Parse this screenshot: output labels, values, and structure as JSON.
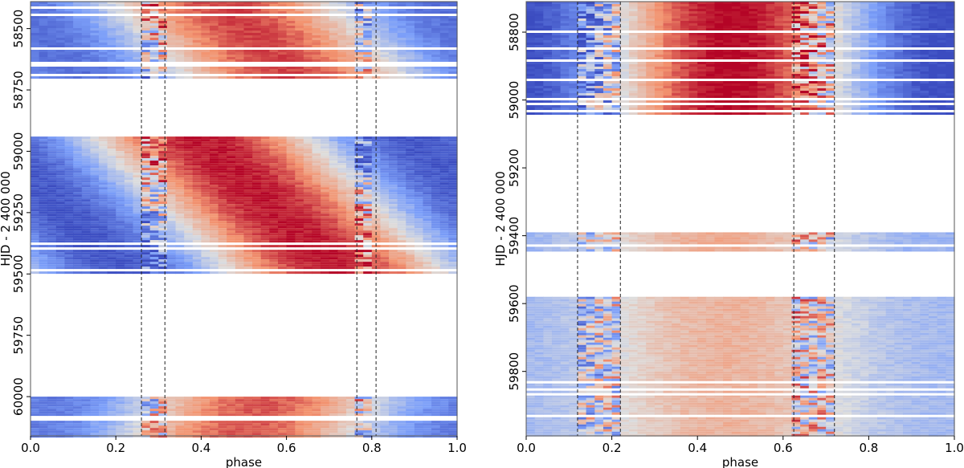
{
  "chart_data": [
    {
      "type": "heatmap",
      "xlabel": "phase",
      "ylabel": "HJD - 2 400 000",
      "xlim": [
        0.0,
        1.0
      ],
      "ylim": [
        60160,
        58390
      ],
      "y_inverted": true,
      "x_ticks": [
        0.0,
        0.2,
        0.4,
        0.6,
        0.8,
        1.0
      ],
      "x_tick_labels": [
        "0.0",
        "0.2",
        "0.4",
        "0.6",
        "0.8",
        "1.0"
      ],
      "y_ticks": [
        58500,
        58750,
        59000,
        59250,
        59500,
        59750,
        60000
      ],
      "y_tick_labels": [
        "58500",
        "58750",
        "59000",
        "59250",
        "59500",
        "59750",
        "60000"
      ],
      "colormap": "coolwarm",
      "dashed_vertical_lines": [
        0.26,
        0.315,
        0.765,
        0.81
      ],
      "observing_seasons": [
        {
          "hjd_start": 58390,
          "hjd_end": 58700,
          "peak_phase_start": 0.45,
          "peak_phase_end": 0.62,
          "peak_level": 0.78
        },
        {
          "hjd_start": 58940,
          "hjd_end": 59490,
          "peak_phase_start": 0.4,
          "peak_phase_end": 0.72,
          "peak_level": 0.95
        },
        {
          "hjd_start": 60000,
          "hjd_end": 60160,
          "peak_phase_start": 0.55,
          "peak_phase_end": 0.5,
          "peak_level": 0.72
        }
      ]
    },
    {
      "type": "heatmap",
      "xlabel": "phase",
      "ylabel": "HJD - 2 400 000",
      "xlim": [
        0.0,
        1.0
      ],
      "ylim": [
        59990,
        58710
      ],
      "y_inverted": true,
      "x_ticks": [
        0.0,
        0.2,
        0.4,
        0.6,
        0.8,
        1.0
      ],
      "x_tick_labels": [
        "0.0",
        "0.2",
        "0.4",
        "0.6",
        "0.8",
        "1.0"
      ],
      "y_ticks": [
        58800,
        59000,
        59200,
        59400,
        59600,
        59800
      ],
      "y_tick_labels": [
        "58800",
        "59000",
        "59200",
        "59400",
        "59600",
        "59800"
      ],
      "colormap": "coolwarm",
      "dashed_vertical_lines": [
        0.12,
        0.22,
        0.625,
        0.72
      ],
      "observing_seasons": [
        {
          "hjd_start": 58710,
          "hjd_end": 59040,
          "peak_phase_start": 0.48,
          "peak_phase_end": 0.48,
          "peak_level": 1.0
        },
        {
          "hjd_start": 59390,
          "hjd_end": 59440,
          "peak_phase_start": 0.45,
          "peak_phase_end": 0.45,
          "peak_level": 0.35
        },
        {
          "hjd_start": 59580,
          "hjd_end": 59990,
          "peak_phase_start": 0.47,
          "peak_phase_end": 0.47,
          "peak_level": 0.3
        }
      ]
    }
  ]
}
